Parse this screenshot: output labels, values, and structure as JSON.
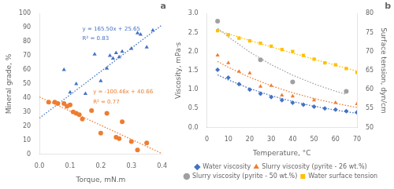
{
  "chart_data": [
    {
      "type": "scatter",
      "title": "a",
      "xlabel": "Torque, mN.m",
      "ylabel": "Mineral grade, %",
      "xlim": [
        0.0,
        0.4
      ],
      "ylim": [
        0,
        100
      ],
      "xticks": [
        {
          "value": 0.0,
          "label": "0.0"
        },
        0.1,
        0.2,
        0.3,
        0.4
      ],
      "yticks": [
        0,
        10,
        20,
        30,
        40,
        50,
        60,
        70,
        80,
        90,
        100
      ],
      "grid": false,
      "annotations": [
        {
          "text": "y = 165.50x + 25.65",
          "color": "#4472C4",
          "x": 0.14,
          "y": 91
        },
        {
          "text": "R² = 0.83",
          "color": "#4472C4",
          "x": 0.14,
          "y": 84
        },
        {
          "text": "y = -100.46x + 40.66",
          "color": "#ED7D31",
          "x": 0.175,
          "y": 46
        },
        {
          "text": "R² = 0.77",
          "color": "#ED7D31",
          "x": 0.175,
          "y": 39
        }
      ],
      "series": [
        {
          "color": "#4472C4",
          "marker": "triangle",
          "x": [
            0.08,
            0.1,
            0.12,
            0.15,
            0.18,
            0.2,
            0.22,
            0.23,
            0.24,
            0.25,
            0.26,
            0.27,
            0.3,
            0.32,
            0.33,
            0.35,
            0.37
          ],
          "values": [
            60,
            44,
            50,
            43,
            71,
            52,
            61,
            70,
            68,
            72,
            69,
            73,
            75,
            86,
            85,
            76,
            88
          ]
        },
        {
          "color": "#ED7D31",
          "marker": "circle",
          "x": [
            0.03,
            0.05,
            0.06,
            0.08,
            0.09,
            0.1,
            0.11,
            0.12,
            0.13,
            0.14,
            0.17,
            0.2,
            0.22,
            0.25,
            0.26,
            0.27,
            0.3,
            0.32,
            0.35
          ],
          "values": [
            37,
            37,
            36,
            36,
            34,
            35,
            30,
            29,
            28,
            25,
            31,
            15,
            29,
            12,
            11,
            23,
            9,
            3,
            8
          ]
        },
        {
          "type": "line",
          "line_style": "dotted",
          "color": "#4472C4",
          "x": [
            0.0,
            0.4
          ],
          "values": [
            25.65,
            91.85
          ]
        },
        {
          "type": "line",
          "line_style": "dotted",
          "color": "#ED7D31",
          "x": [
            0.0,
            0.4
          ],
          "values": [
            40.66,
            0.476
          ]
        }
      ]
    },
    {
      "type": "scatter",
      "title": "b",
      "xlabel": "Temperature, °C",
      "ylabel": "Viscosity, mPa·s",
      "y2label": "Surface tension, dyn/cm",
      "xlim": [
        0,
        70
      ],
      "ylim": [
        0.0,
        3.0
      ],
      "y2lim": [
        50,
        80
      ],
      "xticks": [
        0,
        10,
        20,
        30,
        40,
        50,
        60,
        70
      ],
      "yticks": [
        {
          "value": 0.0,
          "label": "0.0"
        },
        0.5,
        {
          "value": 1.0,
          "label": "1.0"
        },
        1.5,
        {
          "value": 2.0,
          "label": "2.0"
        },
        2.5,
        {
          "value": 3.0,
          "label": "3.0"
        }
      ],
      "y2ticks": [
        50,
        55,
        60,
        65,
        70,
        75,
        80
      ],
      "grid": false,
      "legend": "bottom",
      "series": [
        {
          "name": "Water viscosity",
          "color": "#4472C4",
          "marker": "diamond",
          "x": [
            5,
            10,
            15,
            20,
            25,
            30,
            35,
            40,
            45,
            50,
            55,
            60,
            65,
            70
          ],
          "values": [
            1.52,
            1.31,
            1.14,
            1.0,
            0.89,
            0.8,
            0.72,
            0.65,
            0.6,
            0.55,
            0.5,
            0.47,
            0.43,
            0.4
          ]
        },
        {
          "name": "Slurry viscosity (pyrite - 26 wt.%)",
          "color": "#ED7D31",
          "marker": "triangle",
          "x": [
            5,
            10,
            15,
            20,
            25,
            30,
            35,
            40,
            50,
            60,
            70
          ],
          "values": [
            1.9,
            1.7,
            1.47,
            1.43,
            1.08,
            1.1,
            0.85,
            0.82,
            0.72,
            0.65,
            0.62
          ]
        },
        {
          "name": "Slurry viscosity (pyrite - 50 wt.%)",
          "color": "#A0A0A0",
          "marker": "circle",
          "x": [
            5,
            25,
            40,
            65
          ],
          "values": [
            2.8,
            1.78,
            1.2,
            0.95
          ]
        },
        {
          "name": "Water surface tension",
          "color": "#FFC000",
          "marker": "square",
          "axis": "y2",
          "x": [
            5,
            10,
            15,
            20,
            25,
            30,
            35,
            40,
            45,
            50,
            55,
            60,
            65,
            70
          ],
          "values": [
            75.5,
            74.4,
            73.5,
            72.8,
            72.2,
            71.4,
            70.5,
            70.0,
            69.0,
            68.0,
            67.0,
            66.5,
            65.5,
            64.5
          ]
        },
        {
          "type": "line",
          "line_style": "dotted",
          "color": "#4472C4",
          "x": [
            5,
            10,
            20,
            30,
            40,
            50,
            60,
            70
          ],
          "values": [
            1.3855,
            1.2528,
            1.0244,
            0.8375,
            0.6848,
            0.5599,
            0.4578,
            0.3743
          ]
        },
        {
          "type": "line",
          "line_style": "dotted",
          "color": "#ED7D31",
          "x": [
            5,
            10,
            20,
            30,
            40,
            50,
            60,
            70
          ],
          "values": [
            1.7379,
            1.5857,
            1.3202,
            1.0991,
            0.915,
            0.7618,
            0.6342,
            0.528
          ]
        },
        {
          "type": "line",
          "line_style": "dotted",
          "color": "#A0A0A0",
          "x": [
            5,
            10,
            20,
            30,
            40,
            50,
            60,
            65
          ],
          "values": [
            2.6127,
            2.3843,
            1.9856,
            1.6536,
            1.3771,
            1.1468,
            0.955,
            0.8715
          ]
        },
        {
          "type": "line",
          "line_style": "dotted",
          "color": "#FFC000",
          "axis": "y2",
          "x": [
            5,
            10,
            20,
            30,
            40,
            50,
            60,
            70
          ],
          "values": [
            75.53,
            74.64,
            72.91,
            71.22,
            69.57,
            67.96,
            66.38,
            64.84
          ]
        }
      ]
    }
  ]
}
